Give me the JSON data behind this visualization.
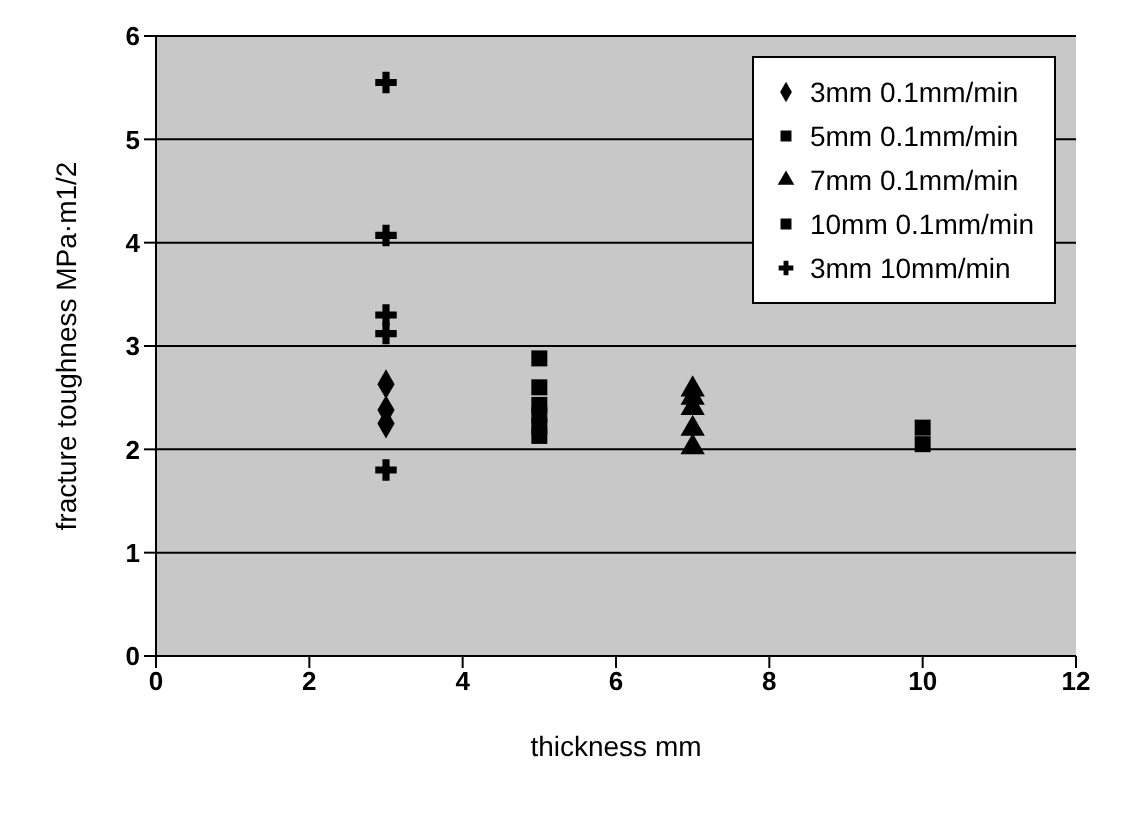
{
  "chart_data": {
    "type": "scatter",
    "xlabel": "thickness mm",
    "ylabel": "fracture toughness MPa·m1/2",
    "xlim": [
      0,
      12
    ],
    "xticks": [
      0,
      2,
      4,
      6,
      8,
      10,
      12
    ],
    "ylim": [
      0,
      6
    ],
    "yticks": [
      0,
      1,
      2,
      3,
      4,
      5,
      6
    ],
    "grid": "y",
    "legend": "top right",
    "series": [
      {
        "name": "3mm 0.1mm/min",
        "color": "#000000",
        "marker": "diamond",
        "x": [
          3,
          3,
          3
        ],
        "values": [
          2.63,
          2.38,
          2.25
        ]
      },
      {
        "name": "5mm 0.1mm/min",
        "color": "#000000",
        "marker": "square",
        "x": [
          5,
          5,
          5,
          5,
          5,
          5
        ],
        "values": [
          2.88,
          2.6,
          2.43,
          2.33,
          2.22,
          2.13
        ]
      },
      {
        "name": "7mm 0.1mm/min",
        "color": "#000000",
        "marker": "triangle",
        "x": [
          7,
          7,
          7,
          7,
          7
        ],
        "values": [
          2.58,
          2.5,
          2.4,
          2.2,
          2.02
        ]
      },
      {
        "name": "10mm 0.1mm/min",
        "color": "#000000",
        "marker": "square",
        "x": [
          10,
          10
        ],
        "values": [
          2.21,
          2.05
        ]
      },
      {
        "name": "3mm 10mm/min",
        "color": "#000000",
        "marker": "cross",
        "x": [
          3,
          3,
          3,
          3,
          3
        ],
        "values": [
          5.55,
          4.07,
          3.3,
          3.12,
          1.8
        ]
      }
    ]
  }
}
